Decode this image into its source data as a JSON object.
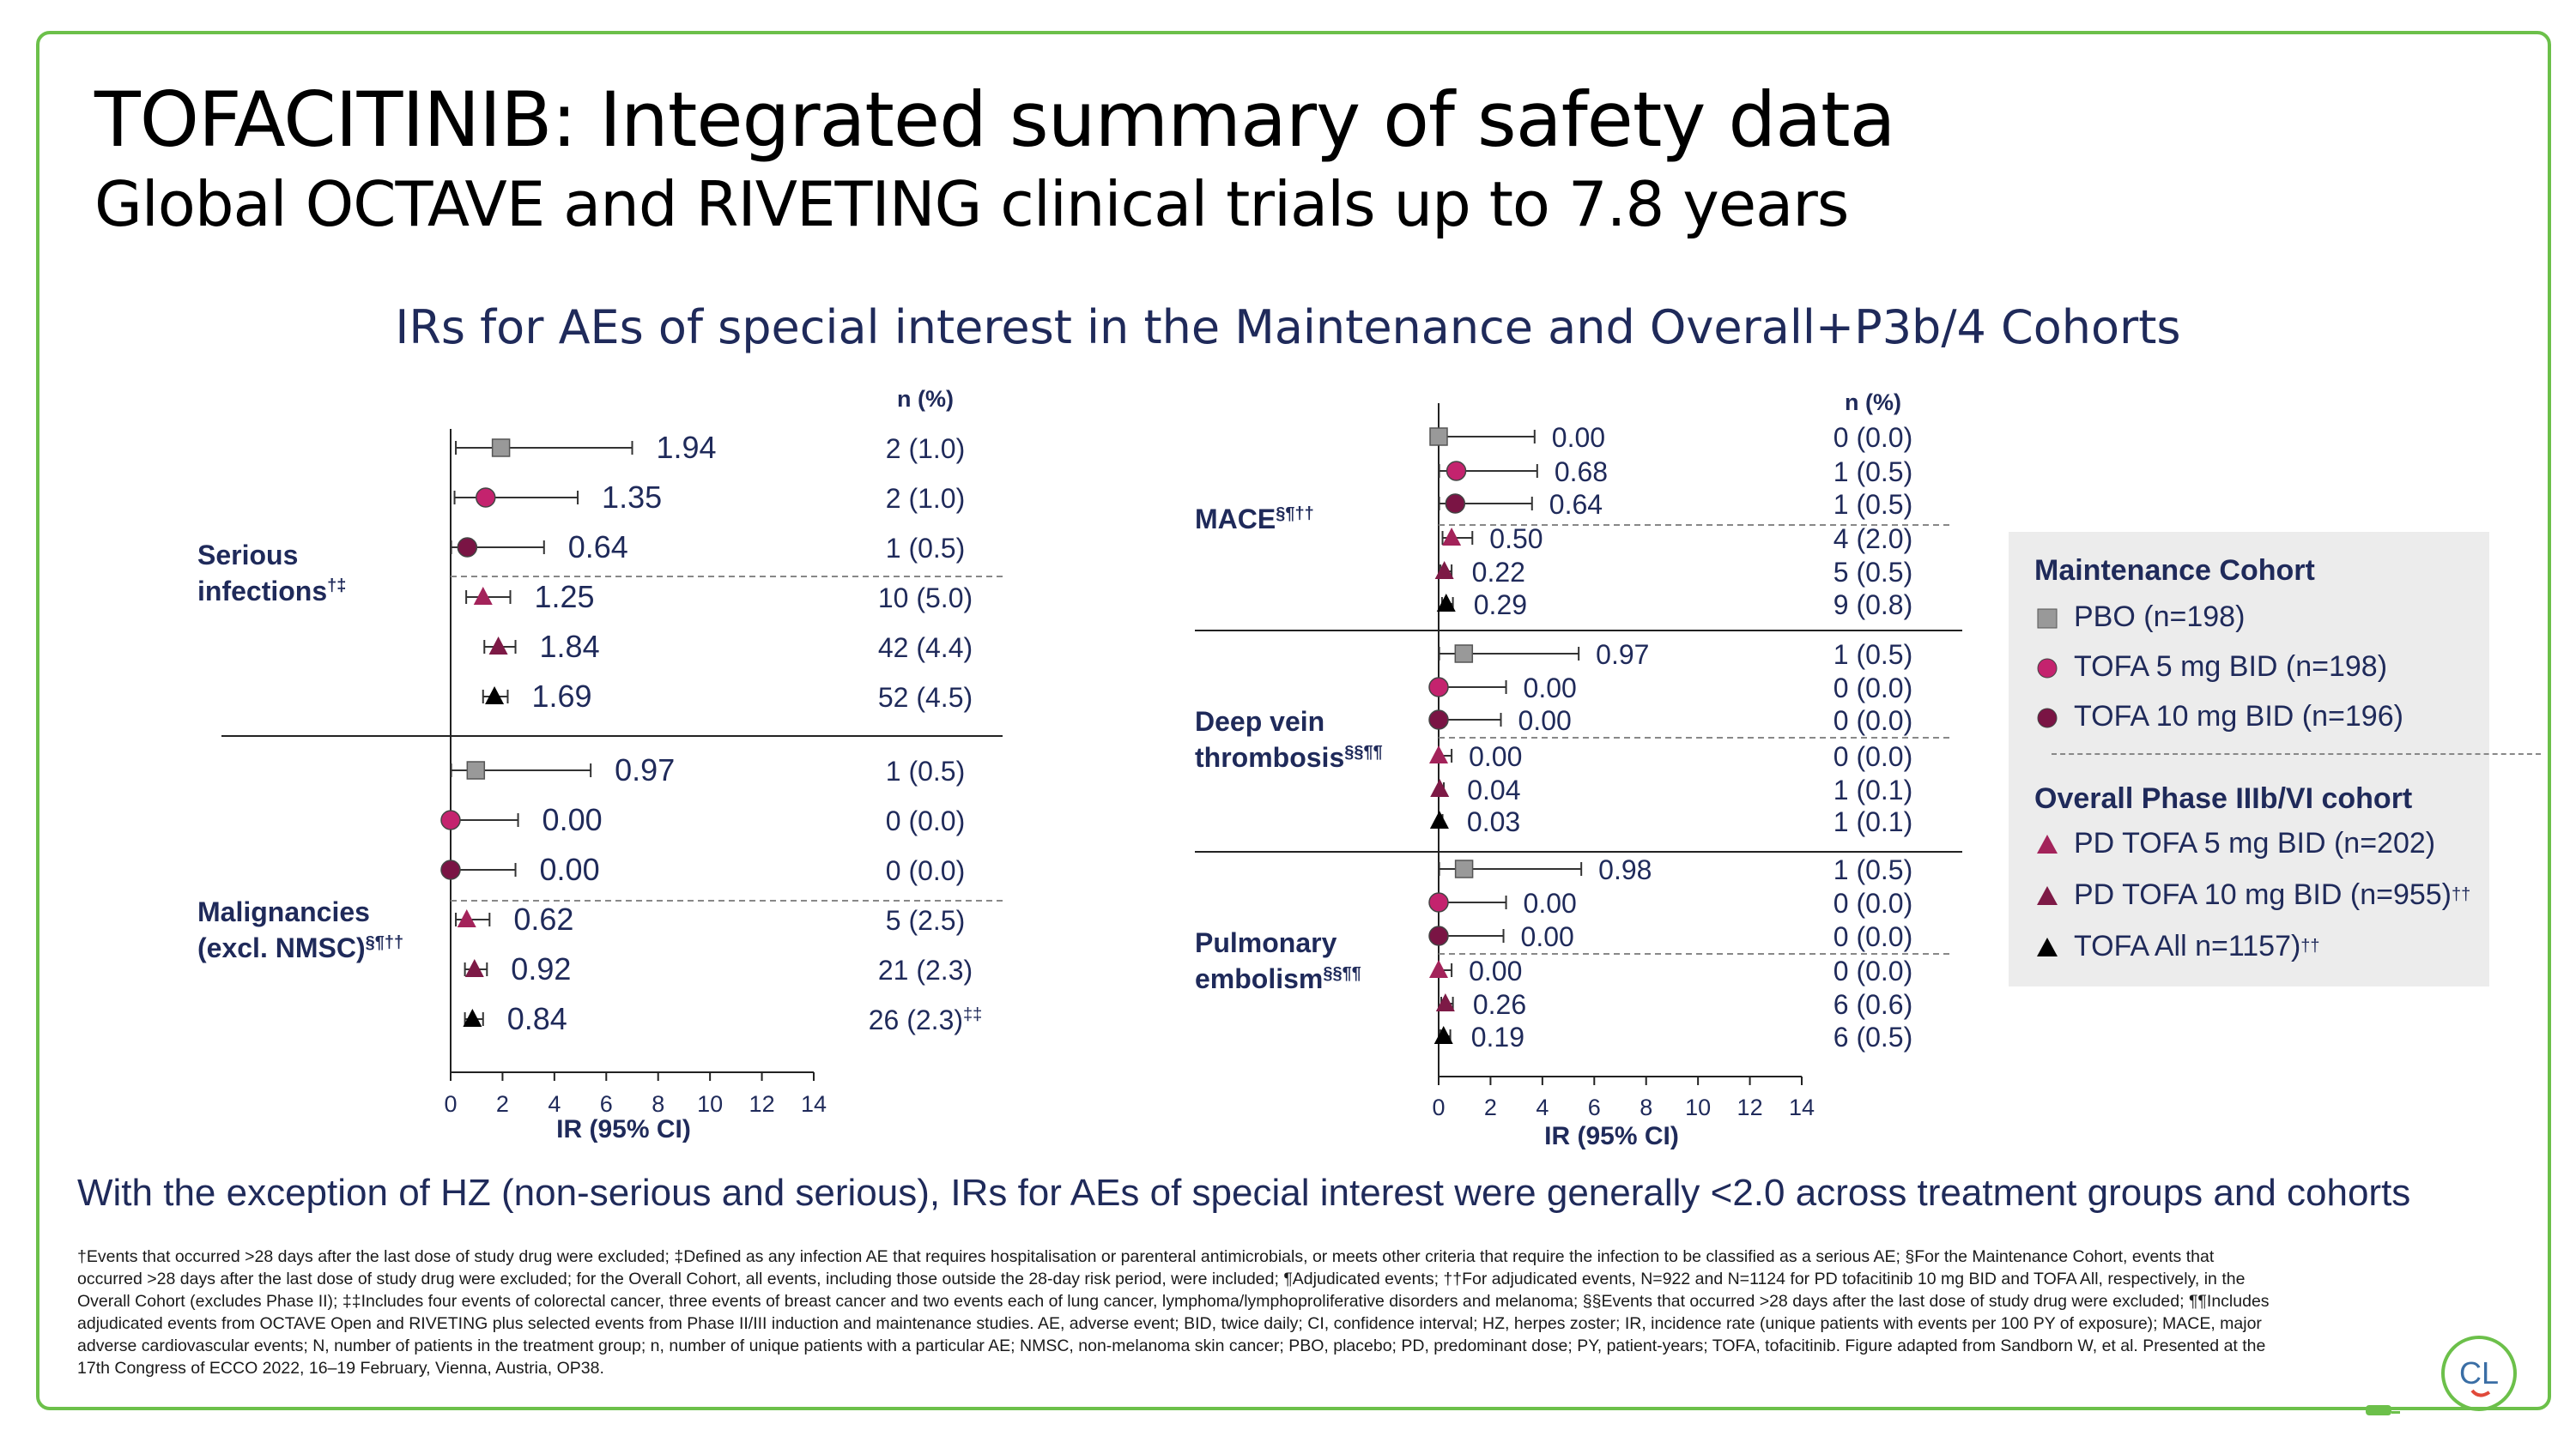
{
  "title": "TOFACITINIB: Integrated summary of safety data",
  "subtitle": "Global OCTAVE and RIVETING clinical trials up to 7.8 years",
  "chart_title": "IRs for AEs of special interest in the Maintenance and Overall+P3b/4 Cohorts",
  "colors": {
    "border": "#6cc04a",
    "PBO": "#999999",
    "TOFA5": "#c4236e",
    "TOFA10": "#7a1444",
    "PD5": "#a3235a",
    "PD10": "#7d1a46",
    "ALL": "#000000",
    "text_navy": "#1f2a5a"
  },
  "chart_data": [
    {
      "type": "forest",
      "panel": "left",
      "xlabel": "IR (95% CI)",
      "xlim": [
        0,
        14
      ],
      "xticks": [
        "0",
        "2",
        "4",
        "6",
        "8",
        "10",
        "12",
        "14"
      ],
      "n_header": "n (%)",
      "groups": [
        {
          "label": "Serious",
          "label2": "infections",
          "sup": "†‡",
          "rows": [
            {
              "arm": "PBO",
              "ir": 1.94,
              "lo": 0.2,
              "hi": 7.0,
              "ir_label": "1.94",
              "n": "2 (1.0)",
              "n_sup": ""
            },
            {
              "arm": "TOFA5",
              "ir": 1.35,
              "lo": 0.15,
              "hi": 4.9,
              "ir_label": "1.35",
              "n": "2 (1.0)",
              "n_sup": ""
            },
            {
              "arm": "TOFA10",
              "ir": 0.64,
              "lo": 0.02,
              "hi": 3.6,
              "ir_label": "0.64",
              "n": "1 (0.5)",
              "n_sup": ""
            },
            {
              "arm": "PD5",
              "ir": 1.25,
              "lo": 0.6,
              "hi": 2.3,
              "ir_label": "1.25",
              "n": "10 (5.0)",
              "n_sup": ""
            },
            {
              "arm": "PD10",
              "ir": 1.84,
              "lo": 1.3,
              "hi": 2.5,
              "ir_label": "1.84",
              "n": "42 (4.4)",
              "n_sup": ""
            },
            {
              "arm": "ALL",
              "ir": 1.69,
              "lo": 1.25,
              "hi": 2.2,
              "ir_label": "1.69",
              "n": "52 (4.5)",
              "n_sup": ""
            }
          ]
        },
        {
          "label": "Malignancies",
          "label2": "(excl. NMSC)",
          "sup": "§¶††",
          "rows": [
            {
              "arm": "PBO",
              "ir": 0.97,
              "lo": 0.02,
              "hi": 5.4,
              "ir_label": "0.97",
              "n": "1 (0.5)",
              "n_sup": ""
            },
            {
              "arm": "TOFA5",
              "ir": 0.0,
              "lo": 0.0,
              "hi": 2.6,
              "ir_label": "0.00",
              "n": "0 (0.0)",
              "n_sup": ""
            },
            {
              "arm": "TOFA10",
              "ir": 0.0,
              "lo": 0.0,
              "hi": 2.5,
              "ir_label": "0.00",
              "n": "0 (0.0)",
              "n_sup": ""
            },
            {
              "arm": "PD5",
              "ir": 0.62,
              "lo": 0.2,
              "hi": 1.5,
              "ir_label": "0.62",
              "n": "5 (2.5)",
              "n_sup": ""
            },
            {
              "arm": "PD10",
              "ir": 0.92,
              "lo": 0.55,
              "hi": 1.4,
              "ir_label": "0.92",
              "n": "21 (2.3)",
              "n_sup": ""
            },
            {
              "arm": "ALL",
              "ir": 0.84,
              "lo": 0.55,
              "hi": 1.25,
              "ir_label": "0.84",
              "n": "26 (2.3)",
              "n_sup": "‡‡"
            }
          ]
        }
      ]
    },
    {
      "type": "forest",
      "panel": "right",
      "xlabel": "IR (95% CI)",
      "xlim": [
        0,
        14
      ],
      "xticks": [
        "0",
        "2",
        "4",
        "6",
        "8",
        "10",
        "12",
        "14"
      ],
      "n_header": "n (%)",
      "groups": [
        {
          "label": "MACE",
          "label2": "",
          "sup": "§¶††",
          "rows": [
            {
              "arm": "PBO",
              "ir": 0.0,
              "lo": 0.0,
              "hi": 3.7,
              "ir_label": "0.00",
              "n": "0 (0.0)",
              "n_sup": ""
            },
            {
              "arm": "TOFA5",
              "ir": 0.68,
              "lo": 0.02,
              "hi": 3.8,
              "ir_label": "0.68",
              "n": "1 (0.5)",
              "n_sup": ""
            },
            {
              "arm": "TOFA10",
              "ir": 0.64,
              "lo": 0.02,
              "hi": 3.6,
              "ir_label": "0.64",
              "n": "1 (0.5)",
              "n_sup": ""
            },
            {
              "arm": "PD5",
              "ir": 0.5,
              "lo": 0.15,
              "hi": 1.3,
              "ir_label": "0.50",
              "n": "4 (2.0)",
              "n_sup": ""
            },
            {
              "arm": "PD10",
              "ir": 0.22,
              "lo": 0.07,
              "hi": 0.5,
              "ir_label": "0.22",
              "n": "5 (0.5)",
              "n_sup": ""
            },
            {
              "arm": "ALL",
              "ir": 0.29,
              "lo": 0.13,
              "hi": 0.55,
              "ir_label": "0.29",
              "n": "9 (0.8)",
              "n_sup": ""
            }
          ]
        },
        {
          "label": "Deep vein",
          "label2": "thrombosis",
          "sup": "§§¶¶",
          "rows": [
            {
              "arm": "PBO",
              "ir": 0.97,
              "lo": 0.02,
              "hi": 5.4,
              "ir_label": "0.97",
              "n": "1 (0.5)",
              "n_sup": ""
            },
            {
              "arm": "TOFA5",
              "ir": 0.0,
              "lo": 0.0,
              "hi": 2.6,
              "ir_label": "0.00",
              "n": "0 (0.0)",
              "n_sup": ""
            },
            {
              "arm": "TOFA10",
              "ir": 0.0,
              "lo": 0.0,
              "hi": 2.4,
              "ir_label": "0.00",
              "n": "0 (0.0)",
              "n_sup": ""
            },
            {
              "arm": "PD5",
              "ir": 0.0,
              "lo": 0.0,
              "hi": 0.5,
              "ir_label": "0.00",
              "n": "0 (0.0)",
              "n_sup": ""
            },
            {
              "arm": "PD10",
              "ir": 0.04,
              "lo": 0.0,
              "hi": 0.2,
              "ir_label": "0.04",
              "n": "1 (0.1)",
              "n_sup": ""
            },
            {
              "arm": "ALL",
              "ir": 0.03,
              "lo": 0.0,
              "hi": 0.15,
              "ir_label": "0.03",
              "n": "1 (0.1)",
              "n_sup": ""
            }
          ]
        },
        {
          "label": "Pulmonary",
          "label2": "embolism",
          "sup": "§§¶¶",
          "rows": [
            {
              "arm": "PBO",
              "ir": 0.98,
              "lo": 0.02,
              "hi": 5.5,
              "ir_label": "0.98",
              "n": "1 (0.5)",
              "n_sup": ""
            },
            {
              "arm": "TOFA5",
              "ir": 0.0,
              "lo": 0.0,
              "hi": 2.6,
              "ir_label": "0.00",
              "n": "0 (0.0)",
              "n_sup": ""
            },
            {
              "arm": "TOFA10",
              "ir": 0.0,
              "lo": 0.0,
              "hi": 2.5,
              "ir_label": "0.00",
              "n": "0 (0.0)",
              "n_sup": ""
            },
            {
              "arm": "PD5",
              "ir": 0.0,
              "lo": 0.0,
              "hi": 0.5,
              "ir_label": "0.00",
              "n": "0 (0.0)",
              "n_sup": ""
            },
            {
              "arm": "PD10",
              "ir": 0.26,
              "lo": 0.1,
              "hi": 0.55,
              "ir_label": "0.26",
              "n": "6 (0.6)",
              "n_sup": ""
            },
            {
              "arm": "ALL",
              "ir": 0.19,
              "lo": 0.07,
              "hi": 0.45,
              "ir_label": "0.19",
              "n": "6 (0.5)",
              "n_sup": ""
            }
          ]
        }
      ]
    }
  ],
  "legend": {
    "maintenance_header": "Maintenance Cohort",
    "overall_header": "Overall Phase IIIb/VI cohort",
    "items": [
      {
        "arm": "PBO",
        "shape": "square",
        "label": "PBO (n=198)",
        "sup": ""
      },
      {
        "arm": "TOFA5",
        "shape": "circle",
        "label": "TOFA 5 mg BID (n=198)",
        "sup": ""
      },
      {
        "arm": "TOFA10",
        "shape": "circle",
        "label": "TOFA 10 mg BID (n=196)",
        "sup": ""
      },
      {
        "arm": "PD5",
        "shape": "triangle",
        "label": "PD TOFA 5 mg BID (n=202)",
        "sup": ""
      },
      {
        "arm": "PD10",
        "shape": "triangle",
        "label": "PD TOFA 10 mg BID (n=955)",
        "sup": "††"
      },
      {
        "arm": "ALL",
        "shape": "triangle",
        "label": "TOFA All n=1157)",
        "sup": "††"
      }
    ]
  },
  "conclusion": "With the exception of HZ (non-serious and serious), IRs for AEs of special interest were generally <2.0  across treatment groups and cohorts",
  "footnote": "†Events that occurred >28 days after the last dose of study drug were excluded; ‡Defined as any infection AE that requires hospitalisation or parenteral antimicrobials, or meets other criteria that require the infection to be classified as a serious AE; §For the Maintenance Cohort, events that occurred >28 days after the last dose of study drug were excluded; for the Overall Cohort, all events, including those outside the 28-day risk period, were included; ¶Adjudicated events; ††For adjudicated events, N=922 and N=1124 for PD tofacitinib 10 mg BID and TOFA All, respectively, in the Overall Cohort (excludes Phase II); ‡‡Includes four events of colorectal cancer, three events of breast cancer and two events each of lung cancer, lymphoma/lymphoproliferative disorders and melanoma; §§Events that occurred >28 days after the last dose of study drug were excluded; ¶¶Includes adjudicated events from OCTAVE Open and RIVETING plus selected events from Phase II/III induction and maintenance studies. AE, adverse event; BID, twice daily; CI, confidence interval; HZ, herpes zoster; IR, incidence rate (unique patients with events per 100 PY of exposure); MACE, major adverse cardiovascular events; N, number of patients in the treatment group; n, number of unique patients with a particular AE; NMSC, non-melanoma skin cancer; PBO, placebo; PD, predominant dose; PY, patient-years; TOFA, tofacitinib. Figure adapted from Sandborn W, et al. Presented at the 17th Congress of ECCO 2022, 16–19 February, Vienna, Austria, OP38.",
  "logo_text": "CL"
}
